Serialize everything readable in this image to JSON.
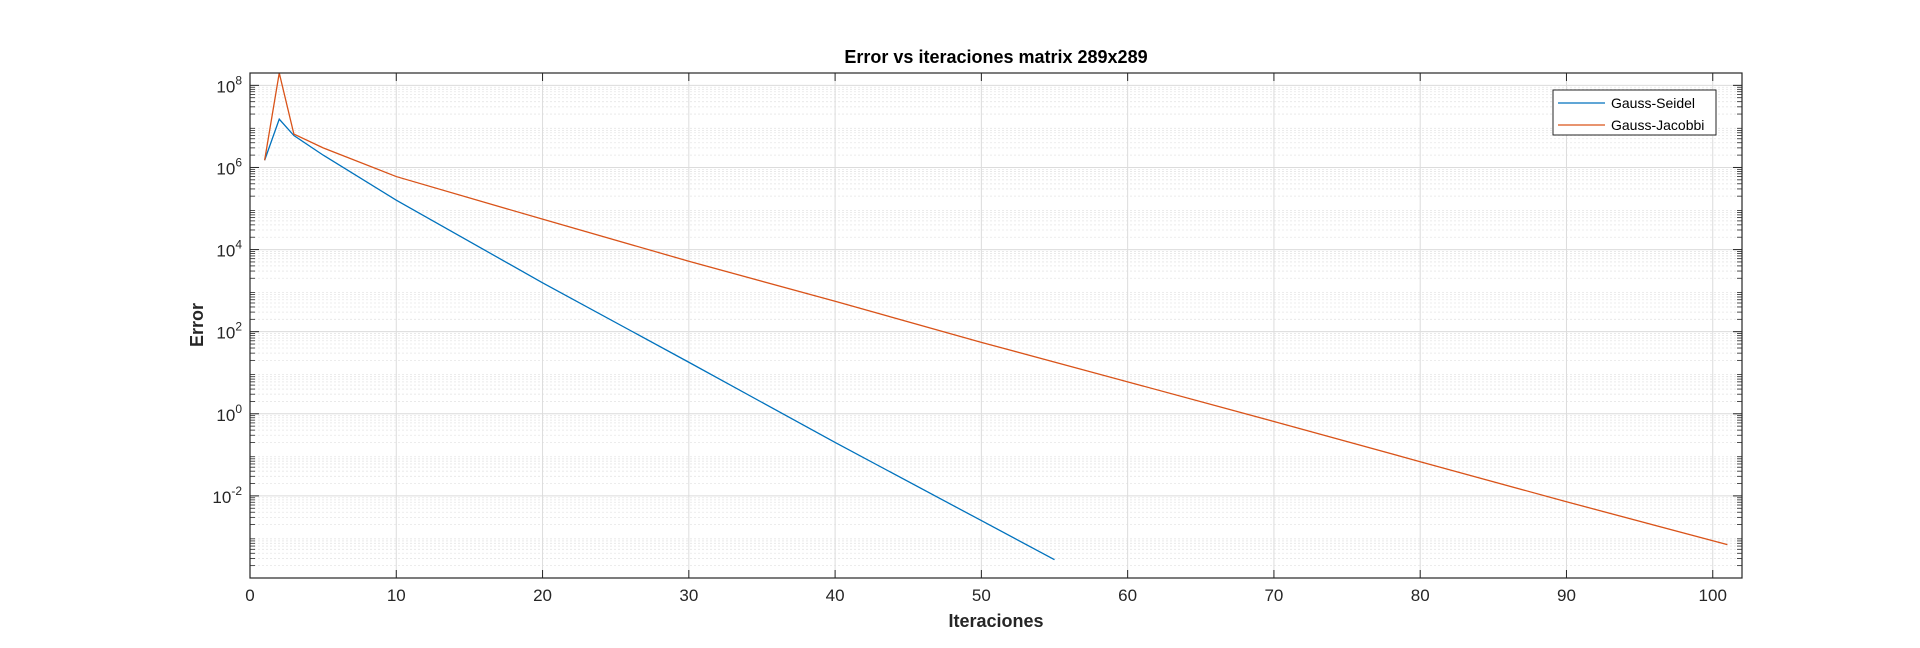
{
  "chart_data": {
    "type": "line",
    "title": "Error vs iteraciones matrix 289x289",
    "xlabel": "Iteraciones",
    "ylabel": "Error",
    "xlim": [
      0,
      102
    ],
    "ylim": [
      0.0001,
      200000000
    ],
    "yscale": "log",
    "grid": true,
    "minor_grid": true,
    "legend_position": "top-right",
    "x_ticks": [
      0,
      10,
      20,
      30,
      40,
      50,
      60,
      70,
      80,
      90,
      100
    ],
    "y_ticks": [
      {
        "base": "10",
        "exp": "-2",
        "value": 0.01
      },
      {
        "base": "10",
        "exp": "0",
        "value": 1
      },
      {
        "base": "10",
        "exp": "2",
        "value": 100
      },
      {
        "base": "10",
        "exp": "4",
        "value": 10000
      },
      {
        "base": "10",
        "exp": "6",
        "value": 1000000
      },
      {
        "base": "10",
        "exp": "8",
        "value": 100000000
      }
    ],
    "series": [
      {
        "name": "Gauss-Seidel",
        "color": "#0072BD",
        "points": [
          {
            "x": 1,
            "y": 1500000
          },
          {
            "x": 2,
            "y": 15000000
          },
          {
            "x": 3,
            "y": 6000000
          },
          {
            "x": 5,
            "y": 2000000
          },
          {
            "x": 10,
            "y": 160000
          },
          {
            "x": 20,
            "y": 1550
          },
          {
            "x": 30,
            "y": 18
          },
          {
            "x": 40,
            "y": 0.2
          },
          {
            "x": 50,
            "y": 0.0025
          },
          {
            "x": 55,
            "y": 0.00028
          }
        ]
      },
      {
        "name": "Gauss-Jacobbi",
        "color": "#D95319",
        "points": [
          {
            "x": 1,
            "y": 1500000
          },
          {
            "x": 2,
            "y": 200000000
          },
          {
            "x": 3,
            "y": 6500000
          },
          {
            "x": 5,
            "y": 3000000
          },
          {
            "x": 10,
            "y": 600000
          },
          {
            "x": 20,
            "y": 55000
          },
          {
            "x": 30,
            "y": 5200
          },
          {
            "x": 40,
            "y": 550
          },
          {
            "x": 50,
            "y": 55
          },
          {
            "x": 60,
            "y": 6
          },
          {
            "x": 70,
            "y": 0.65
          },
          {
            "x": 80,
            "y": 0.068
          },
          {
            "x": 90,
            "y": 0.0072
          },
          {
            "x": 101,
            "y": 0.00065
          }
        ]
      }
    ]
  }
}
